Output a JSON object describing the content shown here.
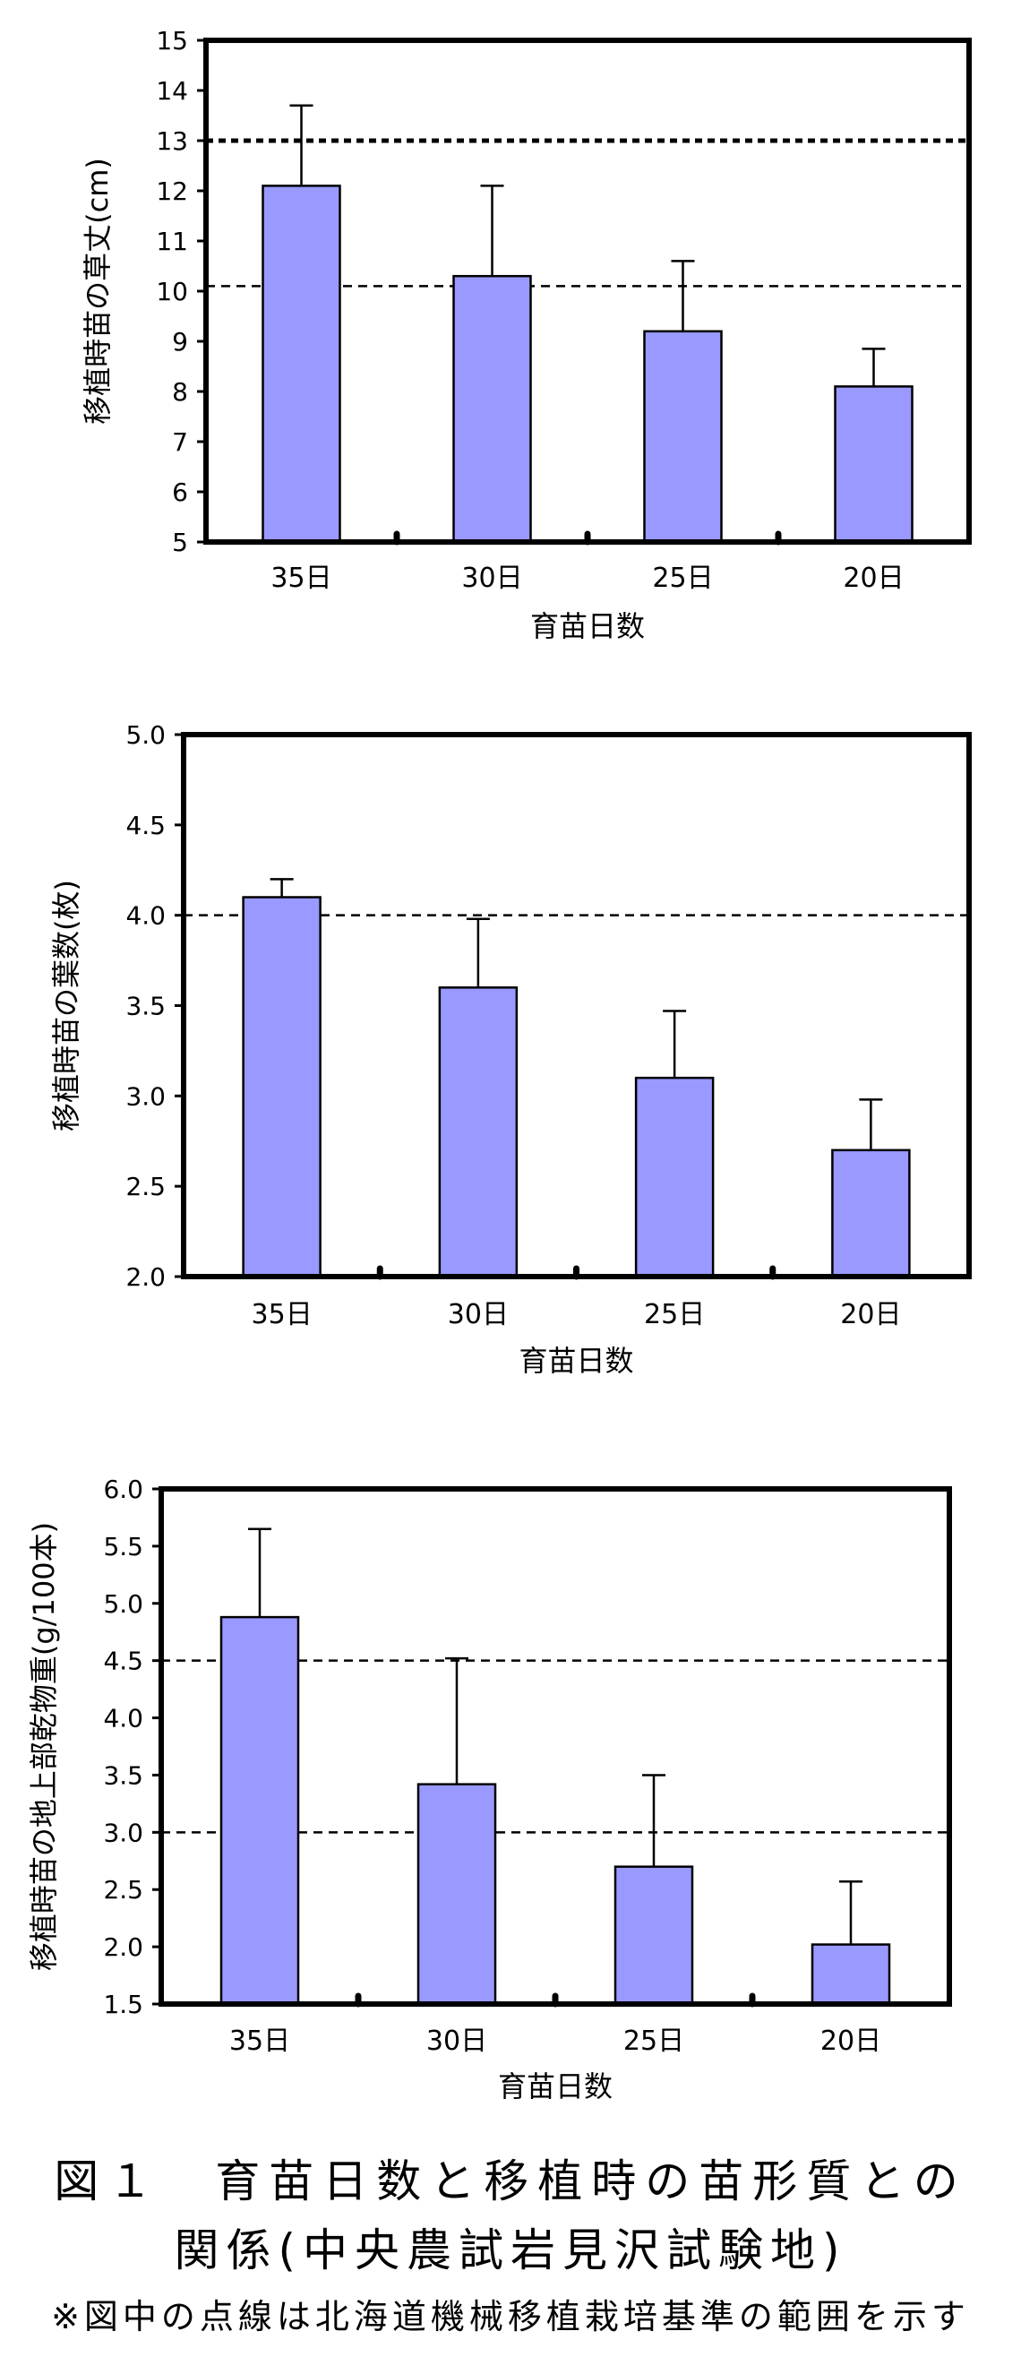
{
  "chart_data": [
    {
      "type": "bar",
      "categories": [
        "35日",
        "30日",
        "25日",
        "20日"
      ],
      "values": [
        12.1,
        10.3,
        9.2,
        8.1
      ],
      "error_plus": [
        1.6,
        1.8,
        1.4,
        0.75
      ],
      "reference_lines": [
        13.0,
        10.1
      ],
      "ylim": [
        5,
        15
      ],
      "yticks": [
        5,
        6,
        7,
        8,
        9,
        10,
        11,
        12,
        13,
        14,
        15
      ],
      "ytick_labels": [
        "5",
        "6",
        "7",
        "8",
        "9",
        "10",
        "11",
        "12",
        "13",
        "14",
        "15"
      ],
      "xlabel": "育苗日数",
      "ylabel": "移植時苗の草丈(cm)",
      "grid": false,
      "bar_color": "#9999ff"
    },
    {
      "type": "bar",
      "categories": [
        "35日",
        "30日",
        "25日",
        "20日"
      ],
      "values": [
        4.1,
        3.6,
        3.1,
        2.7
      ],
      "error_plus": [
        0.1,
        0.38,
        0.37,
        0.28
      ],
      "reference_lines": [
        4.0
      ],
      "ylim": [
        2,
        5
      ],
      "yticks": [
        2,
        2.5,
        3,
        3.5,
        4,
        4.5,
        5
      ],
      "ytick_labels": [
        "2.0",
        "2.5",
        "3.0",
        "3.5",
        "4.0",
        "4.5",
        "5.0"
      ],
      "xlabel": "育苗日数",
      "ylabel": "移植時苗の葉数(枚)",
      "grid": false,
      "bar_color": "#9999ff"
    },
    {
      "type": "bar",
      "categories": [
        "35日",
        "30日",
        "25日",
        "20日"
      ],
      "values": [
        4.88,
        3.42,
        2.7,
        2.02
      ],
      "error_plus": [
        0.77,
        1.1,
        0.8,
        0.55
      ],
      "reference_lines": [
        4.5,
        3.0
      ],
      "ylim": [
        1.5,
        6
      ],
      "yticks": [
        1.5,
        2,
        2.5,
        3,
        3.5,
        4,
        4.5,
        5,
        5.5,
        6
      ],
      "ytick_labels": [
        "1.5",
        "2.0",
        "2.5",
        "3.0",
        "3.5",
        "4.0",
        "4.5",
        "5.0",
        "5.5",
        "6.0"
      ],
      "xlabel": "育苗日数",
      "ylabel": "移植時苗の地上部乾物重(g/100本)",
      "grid": false,
      "bar_color": "#9999ff"
    }
  ],
  "figure": {
    "title": "図１　育苗日数と移植時の苗形質との",
    "title_line2": "関係(中央農試岩見沢試験地)",
    "note": "※図中の点線は北海道機械移植栽培基準の範囲を示す"
  }
}
